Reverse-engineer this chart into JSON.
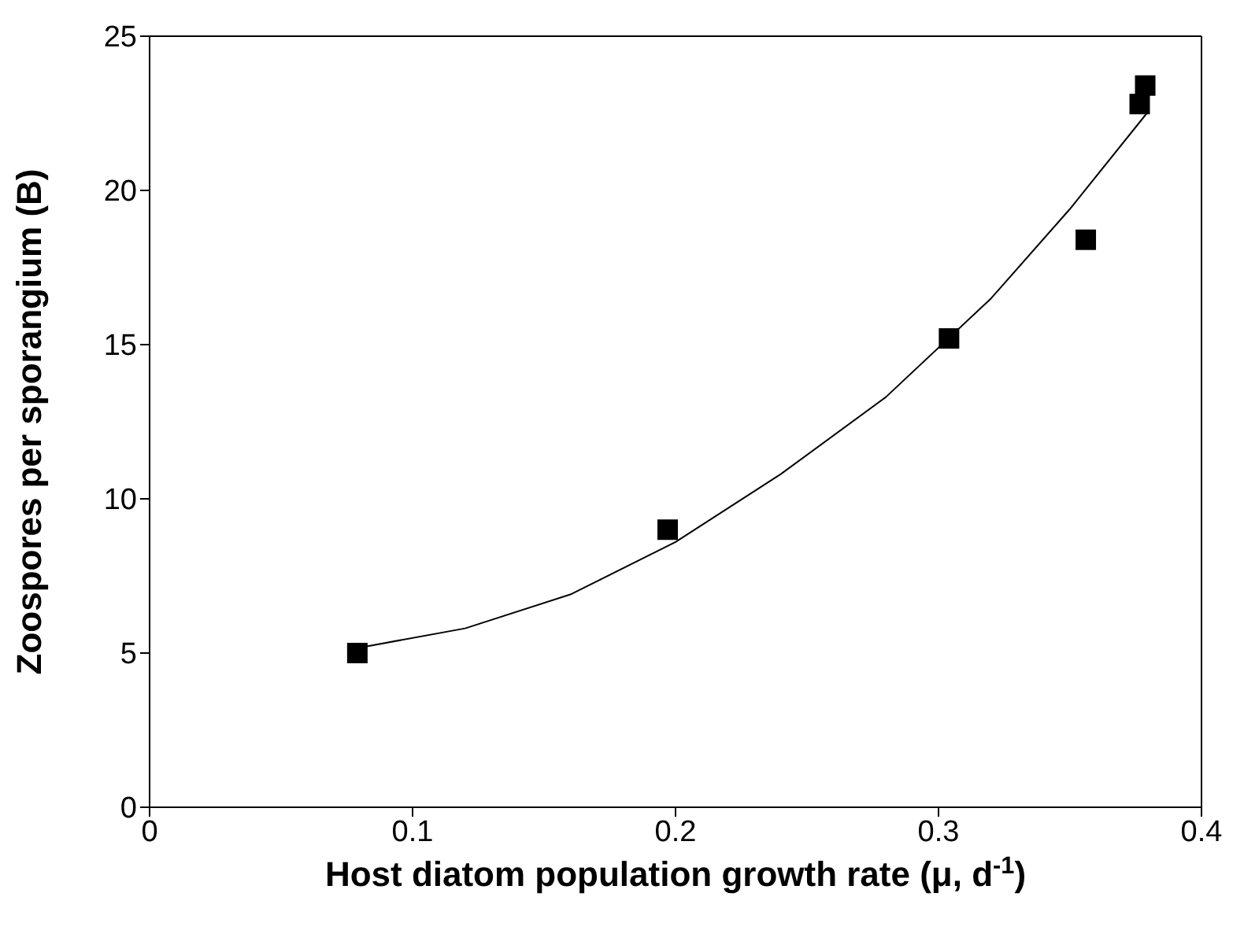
{
  "chart_data": {
    "type": "scatter",
    "xlabel": "Host diatom population growth rate (μ, d$^{-1}$)",
    "ylabel": "Zoospores per sporangium (B)",
    "x": [
      0.079,
      0.197,
      0.304,
      0.356,
      0.3765,
      0.3786
    ],
    "series": [
      {
        "color": "#000000",
        "marker": "square",
        "values": [
          5.0,
          9.0,
          15.2,
          18.4,
          22.8,
          23.4
        ]
      },
      {
        "type": "line",
        "color": "#000000",
        "marker": "none",
        "line_style": "solid",
        "x": [
          0.0814,
          0.12,
          0.16,
          0.2,
          0.24,
          0.28,
          0.32,
          0.35,
          0.3792
        ],
        "values": [
          5.2,
          5.8,
          6.9,
          8.6,
          10.8,
          13.3,
          16.5,
          19.4,
          22.5
        ]
      }
    ],
    "xlim": [
      0,
      0.4
    ],
    "xticks": [
      0,
      0.1,
      0.2,
      0.3,
      0.4
    ],
    "ylim": [
      0,
      25
    ],
    "yticks": [
      0,
      5,
      10,
      15,
      20,
      25
    ],
    "grid": false,
    "legend": false
  }
}
